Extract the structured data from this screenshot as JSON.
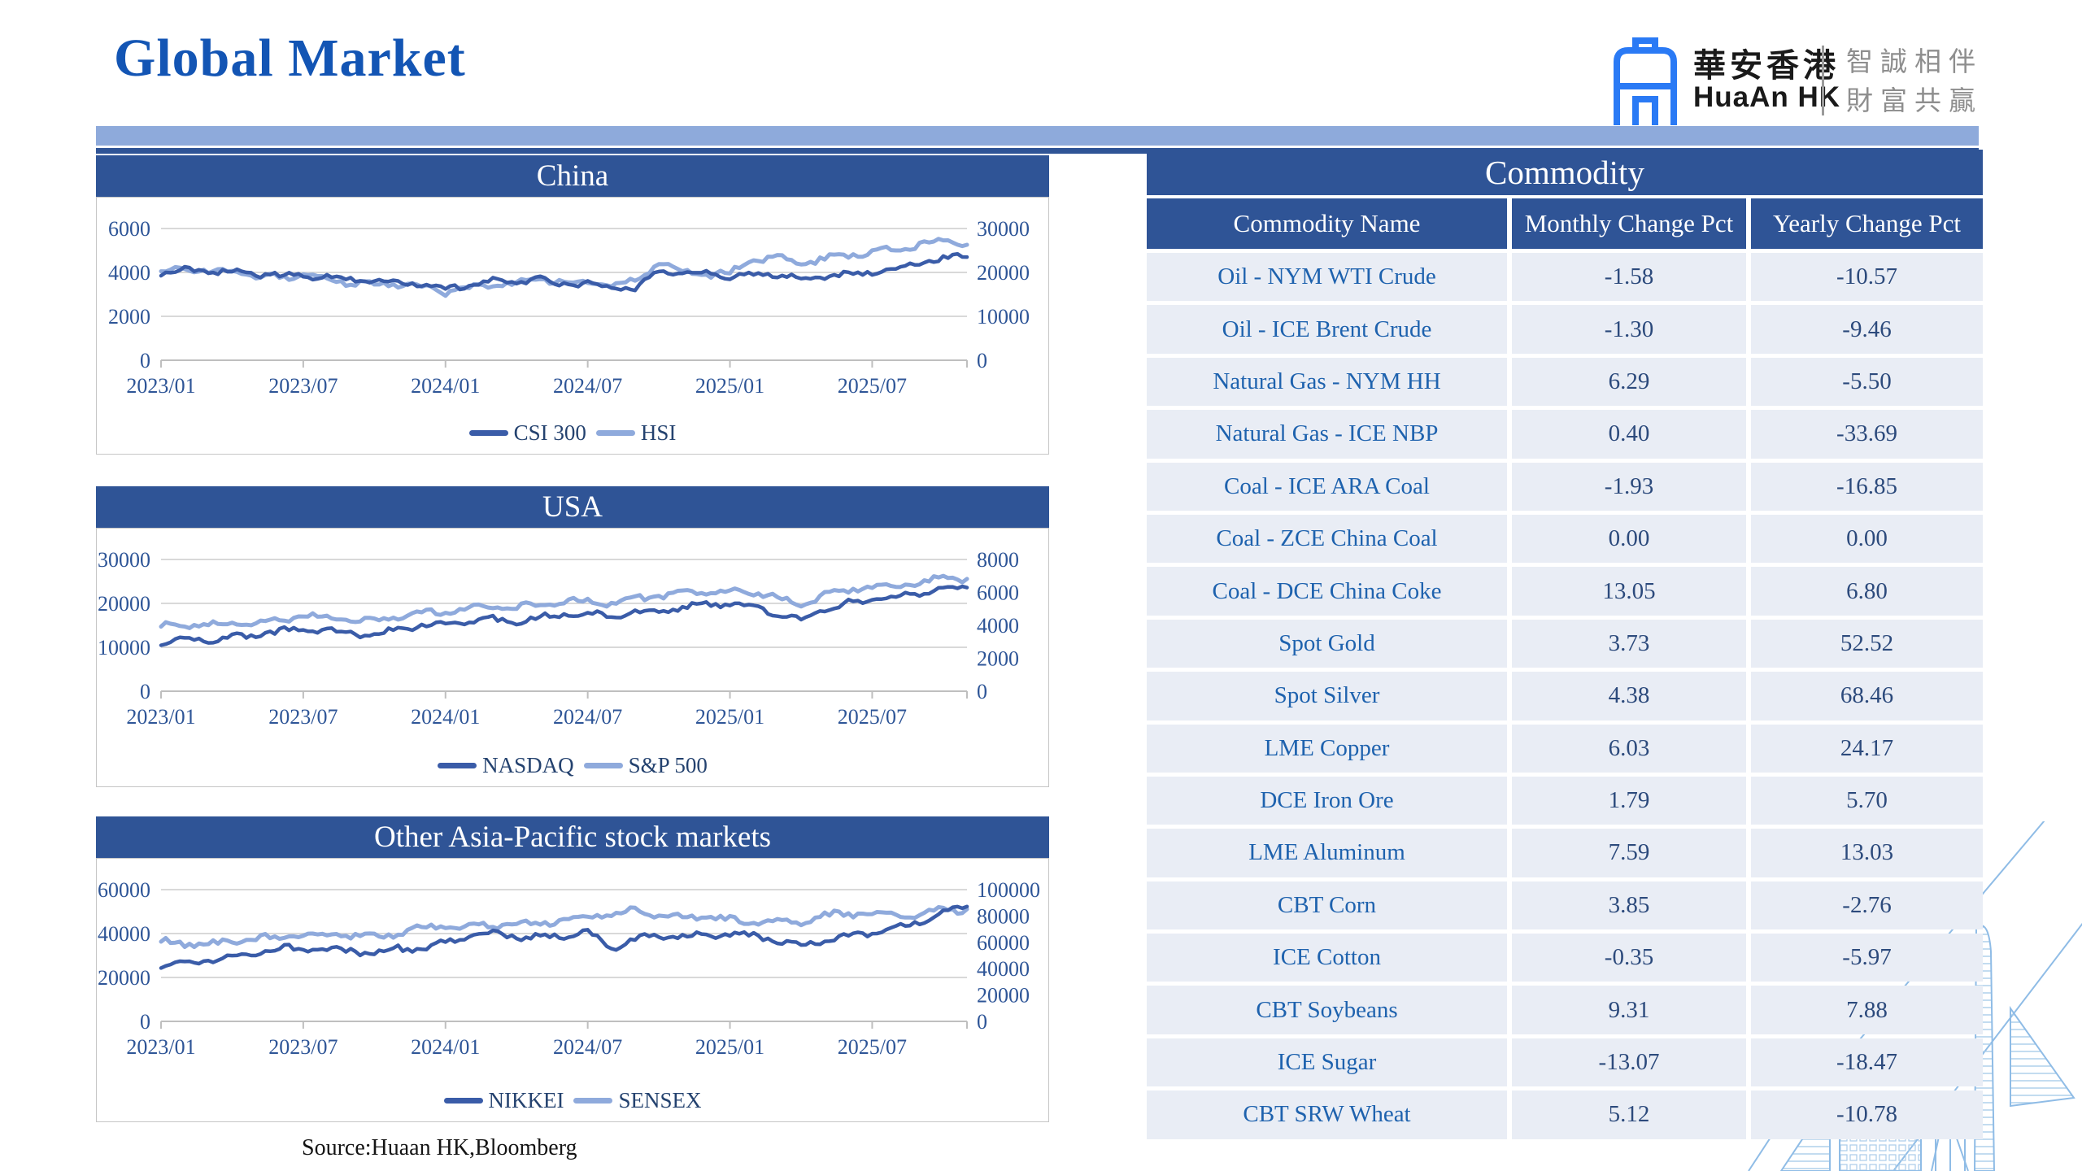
{
  "page": {
    "title": "Global Market",
    "source_note": "Source:Huaan HK,Bloomberg"
  },
  "logo": {
    "name_cn": "華安香港",
    "name_en": "HuaAn HK",
    "tagline_line1": "智誠相伴",
    "tagline_line2": "財富共贏"
  },
  "colors": {
    "banner": "#2F5496",
    "band_light": "#8EAADB",
    "title_blue": "#1355B4",
    "line_dark": "#3A5CA8",
    "line_light": "#8FAADC",
    "grid": "#D9D9D9",
    "axis_line": "#BFBFBF",
    "axis_text": "#2E5597",
    "legend_text": "#24426F",
    "row_bg": "#E9EDF5",
    "name_text": "#1E62AE",
    "value_text": "#2C4A7C"
  },
  "chart_data": [
    {
      "type": "line",
      "title": "China",
      "x_ticks": [
        "2023/01",
        "2023/07",
        "2024/01",
        "2024/07",
        "2025/01",
        "2025/07"
      ],
      "months_total": 35,
      "left_axis": {
        "ticks": [
          0,
          2000,
          4000,
          6000
        ],
        "max": 6000
      },
      "right_axis": {
        "ticks": [
          0,
          10000,
          20000,
          30000
        ],
        "max": 30000
      },
      "legend_position": "bottom",
      "series": [
        {
          "name": "CSI 300",
          "axis": "left",
          "color": "dark",
          "values": [
            3980,
            4120,
            4040,
            4010,
            3920,
            3850,
            3890,
            3800,
            3720,
            3570,
            3590,
            3420,
            3290,
            3430,
            3570,
            3540,
            3630,
            3510,
            3440,
            3310,
            3250,
            4050,
            3920,
            3940,
            3790,
            3890,
            3940,
            3730,
            3850,
            3910,
            4010,
            4180,
            4450,
            4620,
            4700
          ]
        },
        {
          "name": "HSI",
          "axis": "right",
          "color": "light",
          "values": [
            19900,
            21200,
            20100,
            20200,
            19100,
            18900,
            19500,
            18300,
            17800,
            17100,
            17400,
            16800,
            15600,
            16300,
            16900,
            17800,
            18600,
            17900,
            17300,
            17100,
            18000,
            22400,
            20300,
            19600,
            19800,
            22800,
            23400,
            21900,
            23200,
            24000,
            24700,
            25200,
            26400,
            27000,
            26300
          ]
        }
      ]
    },
    {
      "type": "line",
      "title": "USA",
      "x_ticks": [
        "2023/01",
        "2023/07",
        "2024/01",
        "2024/07",
        "2025/01",
        "2025/07"
      ],
      "months_total": 35,
      "left_axis": {
        "ticks": [
          0,
          10000,
          20000,
          30000
        ],
        "max": 30000
      },
      "right_axis": {
        "ticks": [
          0,
          2000,
          4000,
          6000,
          8000
        ],
        "max": 8000
      },
      "legend_position": "bottom",
      "series": [
        {
          "name": "NASDAQ",
          "axis": "left",
          "color": "dark",
          "values": [
            10500,
            11500,
            11900,
            12100,
            12900,
            13600,
            14200,
            13700,
            13200,
            12900,
            14100,
            14900,
            15300,
            16000,
            16300,
            15700,
            16750,
            17700,
            17800,
            16700,
            17900,
            18300,
            19000,
            19800,
            19700,
            19300,
            17800,
            15800,
            18800,
            19900,
            21000,
            21400,
            22300,
            23300,
            23600
          ]
        },
        {
          "name": "S&P 500",
          "axis": "right",
          "color": "light",
          "values": [
            3900,
            4100,
            4000,
            4140,
            4180,
            4380,
            4550,
            4480,
            4300,
            4200,
            4500,
            4750,
            4870,
            5050,
            5220,
            5050,
            5280,
            5460,
            5500,
            5350,
            5700,
            5750,
            5950,
            6040,
            6020,
            5980,
            5650,
            5200,
            5900,
            6150,
            6300,
            6440,
            6640,
            6850,
            6820
          ]
        }
      ]
    },
    {
      "type": "line",
      "title": "Other Asia-Pacific stock markets",
      "x_ticks": [
        "2023/01",
        "2023/07",
        "2024/01",
        "2024/07",
        "2025/01",
        "2025/07"
      ],
      "months_total": 35,
      "left_axis": {
        "ticks": [
          0,
          20000,
          40000,
          60000
        ],
        "max": 60000
      },
      "right_axis": {
        "ticks": [
          0,
          20000,
          40000,
          60000,
          80000,
          100000
        ],
        "max": 100000
      },
      "legend_position": "bottom",
      "series": [
        {
          "name": "NIKKEI",
          "axis": "left",
          "color": "dark",
          "values": [
            26000,
            27400,
            27800,
            28800,
            30900,
            33200,
            32900,
            32200,
            32400,
            31000,
            33300,
            33200,
            36000,
            39100,
            40400,
            38500,
            38600,
            39200,
            40500,
            33000,
            37500,
            39200,
            38500,
            39400,
            39600,
            38700,
            36900,
            33500,
            37300,
            38500,
            40200,
            42200,
            44800,
            49500,
            52300
          ]
        },
        {
          "name": "SENSEX",
          "axis": "right",
          "color": "light",
          "values": [
            60500,
            59400,
            58200,
            60500,
            62400,
            64200,
            66300,
            65200,
            65800,
            63900,
            66100,
            71000,
            71800,
            72500,
            73500,
            74200,
            74300,
            77200,
            80500,
            80800,
            84300,
            80800,
            79000,
            80200,
            76800,
            74500,
            76200,
            75500,
            80200,
            81800,
            82200,
            80700,
            81400,
            84000,
            85200
          ]
        }
      ]
    }
  ],
  "table": {
    "title": "Commodity",
    "headers": [
      "Commodity Name",
      "Monthly Change Pct",
      "Yearly Change Pct"
    ],
    "rows": [
      [
        "Oil - NYM WTI Crude",
        "-1.58",
        "-10.57"
      ],
      [
        "Oil - ICE Brent Crude",
        "-1.30",
        "-9.46"
      ],
      [
        "Natural Gas - NYM HH",
        "6.29",
        "-5.50"
      ],
      [
        "Natural Gas - ICE NBP",
        "0.40",
        "-33.69"
      ],
      [
        "Coal - ICE ARA Coal",
        "-1.93",
        "-16.85"
      ],
      [
        "Coal - ZCE China Coal",
        "0.00",
        "0.00"
      ],
      [
        "Coal - DCE China Coke",
        "13.05",
        "6.80"
      ],
      [
        "Spot Gold",
        "3.73",
        "52.52"
      ],
      [
        "Spot Silver",
        "4.38",
        "68.46"
      ],
      [
        "LME Copper",
        "6.03",
        "24.17"
      ],
      [
        "DCE Iron Ore",
        "1.79",
        "5.70"
      ],
      [
        "LME Aluminum",
        "7.59",
        "13.03"
      ],
      [
        "CBT Corn",
        "3.85",
        "-2.76"
      ],
      [
        "ICE Cotton",
        "-0.35",
        "-5.97"
      ],
      [
        "CBT Soybeans",
        "9.31",
        "7.88"
      ],
      [
        "ICE Sugar",
        "-13.07",
        "-18.47"
      ],
      [
        "CBT SRW Wheat",
        "5.12",
        "-10.78"
      ]
    ]
  }
}
